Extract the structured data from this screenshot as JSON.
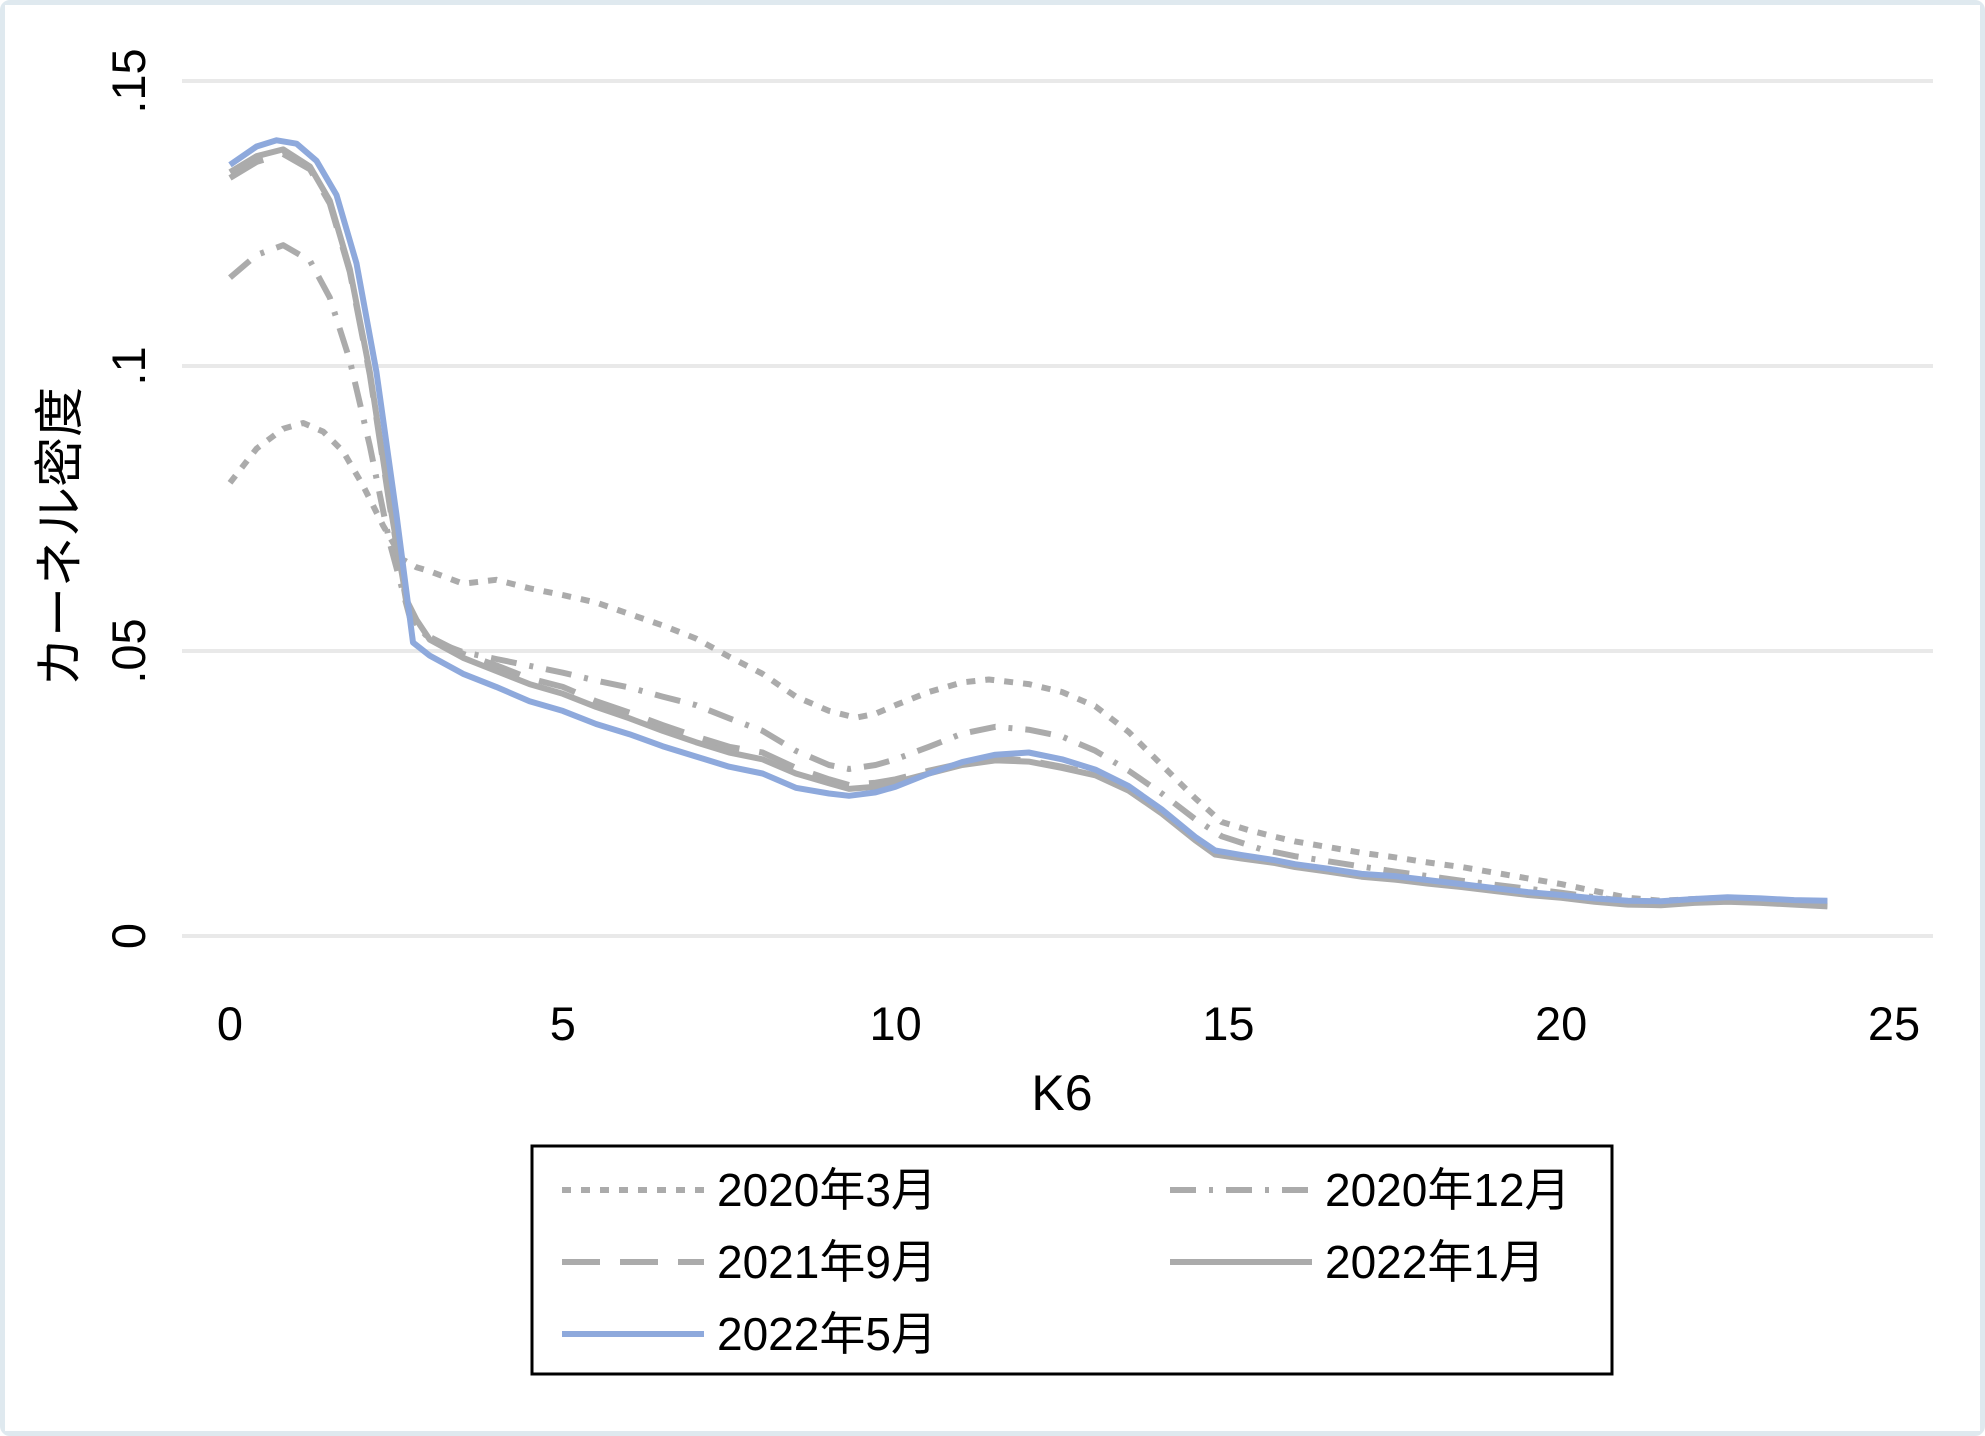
{
  "figure": {
    "background": "#ffffff",
    "frame_border_color": "#dfe9ef",
    "gridline_color": "#e9e9e9",
    "legend_border_color": "#000000"
  },
  "chart_data": {
    "type": "line",
    "title": "",
    "xlabel": "K6",
    "ylabel": "カーネル密度",
    "xlim": [
      0,
      25
    ],
    "ylim": [
      0,
      0.15
    ],
    "x_tick_values": [
      0,
      5,
      10,
      15,
      20,
      25
    ],
    "x_tick_labels": [
      "0",
      "5",
      "10",
      "15",
      "20",
      "25"
    ],
    "y_tick_values": [
      0,
      0.05,
      0.1,
      0.15
    ],
    "y_tick_labels": [
      "0",
      ".05",
      ".1",
      ".15"
    ],
    "grid": "horizontal-only",
    "legend_position": "bottom-center",
    "legend_columns": 2,
    "series": [
      {
        "name": "2020年3月",
        "color": "#ababab",
        "line_style": "dotted",
        "dash": "9 10",
        "points": [
          [
            0,
            0.0795
          ],
          [
            0.4,
            0.0855
          ],
          [
            0.8,
            0.089
          ],
          [
            1.1,
            0.09
          ],
          [
            1.4,
            0.0885
          ],
          [
            1.7,
            0.085
          ],
          [
            2.0,
            0.079
          ],
          [
            2.3,
            0.072
          ],
          [
            2.6,
            0.066
          ],
          [
            2.8,
            0.0647
          ],
          [
            3,
            0.064
          ],
          [
            3.5,
            0.0618
          ],
          [
            4,
            0.0625
          ],
          [
            4.5,
            0.061
          ],
          [
            5,
            0.0598
          ],
          [
            5.5,
            0.0585
          ],
          [
            6,
            0.0565
          ],
          [
            6.5,
            0.0545
          ],
          [
            7,
            0.0522
          ],
          [
            7.5,
            0.049
          ],
          [
            8,
            0.046
          ],
          [
            8.5,
            0.042
          ],
          [
            9,
            0.0395
          ],
          [
            9.4,
            0.0383
          ],
          [
            9.7,
            0.039
          ],
          [
            10,
            0.0405
          ],
          [
            10.5,
            0.0428
          ],
          [
            11,
            0.0445
          ],
          [
            11.4,
            0.045
          ],
          [
            12,
            0.0442
          ],
          [
            12.5,
            0.0428
          ],
          [
            13,
            0.0403
          ],
          [
            13.5,
            0.0358
          ],
          [
            14,
            0.03
          ],
          [
            14.5,
            0.0242
          ],
          [
            14.9,
            0.02
          ],
          [
            15.3,
            0.0186
          ],
          [
            15.7,
            0.0174
          ],
          [
            16,
            0.0166
          ],
          [
            16.5,
            0.0156
          ],
          [
            17,
            0.0146
          ],
          [
            17.5,
            0.0138
          ],
          [
            18,
            0.0129
          ],
          [
            18.5,
            0.0121
          ],
          [
            19,
            0.0111
          ],
          [
            19.5,
            0.0101
          ],
          [
            20,
            0.0091
          ],
          [
            20.5,
            0.0079
          ],
          [
            21,
            0.0067
          ],
          [
            21.5,
            0.0062
          ],
          [
            22,
            0.0065
          ],
          [
            22.5,
            0.0067
          ],
          [
            23,
            0.0064
          ],
          [
            23.5,
            0.0062
          ],
          [
            24,
            0.006
          ]
        ]
      },
      {
        "name": "2020年12月",
        "color": "#ababab",
        "line_style": "dash-dot",
        "dash": "26 13 4 13",
        "points": [
          [
            0,
            0.1155
          ],
          [
            0.4,
            0.1195
          ],
          [
            0.8,
            0.1212
          ],
          [
            1.2,
            0.1185
          ],
          [
            1.5,
            0.112
          ],
          [
            1.8,
            0.101
          ],
          [
            2.1,
            0.086
          ],
          [
            2.4,
            0.069
          ],
          [
            2.7,
            0.056
          ],
          [
            3,
            0.052
          ],
          [
            3.5,
            0.0498
          ],
          [
            4,
            0.0486
          ],
          [
            4.5,
            0.0474
          ],
          [
            5,
            0.0462
          ],
          [
            5.5,
            0.0448
          ],
          [
            6,
            0.0436
          ],
          [
            6.5,
            0.042
          ],
          [
            7,
            0.0405
          ],
          [
            7.5,
            0.0382
          ],
          [
            8,
            0.036
          ],
          [
            8.5,
            0.0325
          ],
          [
            9,
            0.03
          ],
          [
            9.3,
            0.0293
          ],
          [
            9.7,
            0.03
          ],
          [
            10,
            0.031
          ],
          [
            10.5,
            0.0332
          ],
          [
            11,
            0.0355
          ],
          [
            11.5,
            0.0367
          ],
          [
            12,
            0.0362
          ],
          [
            12.5,
            0.035
          ],
          [
            13,
            0.0325
          ],
          [
            13.5,
            0.029
          ],
          [
            14,
            0.025
          ],
          [
            14.5,
            0.0205
          ],
          [
            14.9,
            0.0175
          ],
          [
            15.5,
            0.0152
          ],
          [
            16,
            0.014
          ],
          [
            16.5,
            0.0131
          ],
          [
            17,
            0.0122
          ],
          [
            17.5,
            0.0113
          ],
          [
            18,
            0.0105
          ],
          [
            18.5,
            0.0097
          ],
          [
            19,
            0.009
          ],
          [
            19.5,
            0.0083
          ],
          [
            20,
            0.0076
          ],
          [
            20.5,
            0.0068
          ],
          [
            21,
            0.0061
          ],
          [
            21.5,
            0.0059
          ],
          [
            22,
            0.0063
          ],
          [
            22.5,
            0.0064
          ],
          [
            23,
            0.0061
          ],
          [
            23.5,
            0.0059
          ],
          [
            24,
            0.0057
          ]
        ]
      },
      {
        "name": "2021年9月",
        "color": "#ababab",
        "line_style": "long-dash",
        "dash": "38 20",
        "points": [
          [
            0,
            0.133
          ],
          [
            0.4,
            0.1358
          ],
          [
            0.8,
            0.1372
          ],
          [
            1.2,
            0.1345
          ],
          [
            1.5,
            0.1285
          ],
          [
            1.8,
            0.1165
          ],
          [
            2.1,
            0.0985
          ],
          [
            2.4,
            0.0755
          ],
          [
            2.65,
            0.0585
          ],
          [
            2.8,
            0.0548
          ],
          [
            3,
            0.0525
          ],
          [
            3.5,
            0.0495
          ],
          [
            4,
            0.0475
          ],
          [
            4.5,
            0.0452
          ],
          [
            5,
            0.0437
          ],
          [
            5.5,
            0.0412
          ],
          [
            6,
            0.0392
          ],
          [
            6.5,
            0.037
          ],
          [
            7,
            0.035
          ],
          [
            7.5,
            0.0332
          ],
          [
            8,
            0.0322
          ],
          [
            8.5,
            0.0295
          ],
          [
            9,
            0.0275
          ],
          [
            9.3,
            0.0265
          ],
          [
            9.7,
            0.0269
          ],
          [
            10,
            0.0275
          ],
          [
            10.5,
            0.029
          ],
          [
            11,
            0.0303
          ],
          [
            11.5,
            0.0311
          ],
          [
            12,
            0.0308
          ],
          [
            12.5,
            0.0297
          ],
          [
            13,
            0.0284
          ],
          [
            13.5,
            0.0258
          ],
          [
            14,
            0.0218
          ],
          [
            14.5,
            0.017
          ],
          [
            14.8,
            0.0146
          ],
          [
            15.2,
            0.0138
          ],
          [
            15.7,
            0.0129
          ],
          [
            16,
            0.0123
          ],
          [
            16.5,
            0.0114
          ],
          [
            17,
            0.0106
          ],
          [
            17.5,
            0.01
          ],
          [
            18,
            0.0094
          ],
          [
            18.5,
            0.0087
          ],
          [
            19,
            0.0081
          ],
          [
            19.5,
            0.0074
          ],
          [
            20,
            0.0068
          ],
          [
            20.5,
            0.0061
          ],
          [
            21,
            0.0056
          ],
          [
            21.5,
            0.0055
          ],
          [
            22,
            0.0059
          ],
          [
            22.5,
            0.0061
          ],
          [
            23,
            0.0059
          ],
          [
            23.5,
            0.0056
          ],
          [
            24,
            0.0053
          ]
        ]
      },
      {
        "name": "2022年1月",
        "color": "#ababab",
        "line_style": "solid",
        "dash": "",
        "points": [
          [
            0,
            0.134
          ],
          [
            0.4,
            0.1368
          ],
          [
            0.8,
            0.138
          ],
          [
            1.2,
            0.135
          ],
          [
            1.5,
            0.129
          ],
          [
            1.8,
            0.117
          ],
          [
            2.1,
            0.099
          ],
          [
            2.4,
            0.076
          ],
          [
            2.65,
            0.059
          ],
          [
            2.8,
            0.0555
          ],
          [
            3,
            0.052
          ],
          [
            3.5,
            0.0488
          ],
          [
            4,
            0.0465
          ],
          [
            4.5,
            0.0442
          ],
          [
            5,
            0.0425
          ],
          [
            5.5,
            0.0402
          ],
          [
            6,
            0.0382
          ],
          [
            6.5,
            0.036
          ],
          [
            7,
            0.034
          ],
          [
            7.5,
            0.0322
          ],
          [
            8,
            0.031
          ],
          [
            8.5,
            0.0285
          ],
          [
            9,
            0.0268
          ],
          [
            9.3,
            0.0258
          ],
          [
            9.7,
            0.0262
          ],
          [
            10,
            0.027
          ],
          [
            10.5,
            0.0285
          ],
          [
            11,
            0.03
          ],
          [
            11.5,
            0.0308
          ],
          [
            12,
            0.0306
          ],
          [
            12.5,
            0.0295
          ],
          [
            13,
            0.0282
          ],
          [
            13.5,
            0.0255
          ],
          [
            14,
            0.0215
          ],
          [
            14.5,
            0.0168
          ],
          [
            14.8,
            0.0143
          ],
          [
            15.2,
            0.0136
          ],
          [
            15.7,
            0.0128
          ],
          [
            16,
            0.0121
          ],
          [
            16.5,
            0.0113
          ],
          [
            17,
            0.0104
          ],
          [
            17.5,
            0.0099
          ],
          [
            18,
            0.0092
          ],
          [
            18.5,
            0.0086
          ],
          [
            19,
            0.0079
          ],
          [
            19.5,
            0.0072
          ],
          [
            20,
            0.0067
          ],
          [
            20.5,
            0.006
          ],
          [
            21,
            0.0055
          ],
          [
            21.5,
            0.0054
          ],
          [
            22,
            0.0058
          ],
          [
            22.5,
            0.006
          ],
          [
            23,
            0.0058
          ],
          [
            23.5,
            0.0055
          ],
          [
            24,
            0.0052
          ]
        ]
      },
      {
        "name": "2022年5月",
        "color": "#8ea9dc",
        "line_style": "solid",
        "dash": "",
        "points": [
          [
            0,
            0.1353
          ],
          [
            0.4,
            0.1385
          ],
          [
            0.7,
            0.1396
          ],
          [
            1,
            0.139
          ],
          [
            1.3,
            0.136
          ],
          [
            1.6,
            0.13
          ],
          [
            1.9,
            0.118
          ],
          [
            2.2,
            0.099
          ],
          [
            2.5,
            0.074
          ],
          [
            2.75,
            0.0515
          ],
          [
            3,
            0.0492
          ],
          [
            3.5,
            0.046
          ],
          [
            4,
            0.0437
          ],
          [
            4.5,
            0.0412
          ],
          [
            5,
            0.0395
          ],
          [
            5.5,
            0.0372
          ],
          [
            6,
            0.0354
          ],
          [
            6.5,
            0.0333
          ],
          [
            7,
            0.0315
          ],
          [
            7.5,
            0.0297
          ],
          [
            8,
            0.0285
          ],
          [
            8.5,
            0.026
          ],
          [
            9,
            0.025
          ],
          [
            9.3,
            0.0246
          ],
          [
            9.7,
            0.0252
          ],
          [
            10,
            0.0262
          ],
          [
            10.5,
            0.0285
          ],
          [
            11,
            0.0305
          ],
          [
            11.5,
            0.0318
          ],
          [
            12,
            0.0322
          ],
          [
            12.5,
            0.031
          ],
          [
            13,
            0.0292
          ],
          [
            13.5,
            0.0263
          ],
          [
            14,
            0.0222
          ],
          [
            14.5,
            0.0174
          ],
          [
            14.8,
            0.015
          ],
          [
            15.2,
            0.0142
          ],
          [
            15.7,
            0.0133
          ],
          [
            16,
            0.0126
          ],
          [
            16.5,
            0.0118
          ],
          [
            17,
            0.0109
          ],
          [
            17.5,
            0.0105
          ],
          [
            18,
            0.0098
          ],
          [
            18.5,
            0.0091
          ],
          [
            19,
            0.0084
          ],
          [
            19.5,
            0.0077
          ],
          [
            20,
            0.0072
          ],
          [
            20.5,
            0.0066
          ],
          [
            21,
            0.0062
          ],
          [
            21.5,
            0.0061
          ],
          [
            22,
            0.0065
          ],
          [
            22.5,
            0.0068
          ],
          [
            23,
            0.0066
          ],
          [
            23.5,
            0.0063
          ],
          [
            24,
            0.0062
          ]
        ]
      }
    ]
  }
}
